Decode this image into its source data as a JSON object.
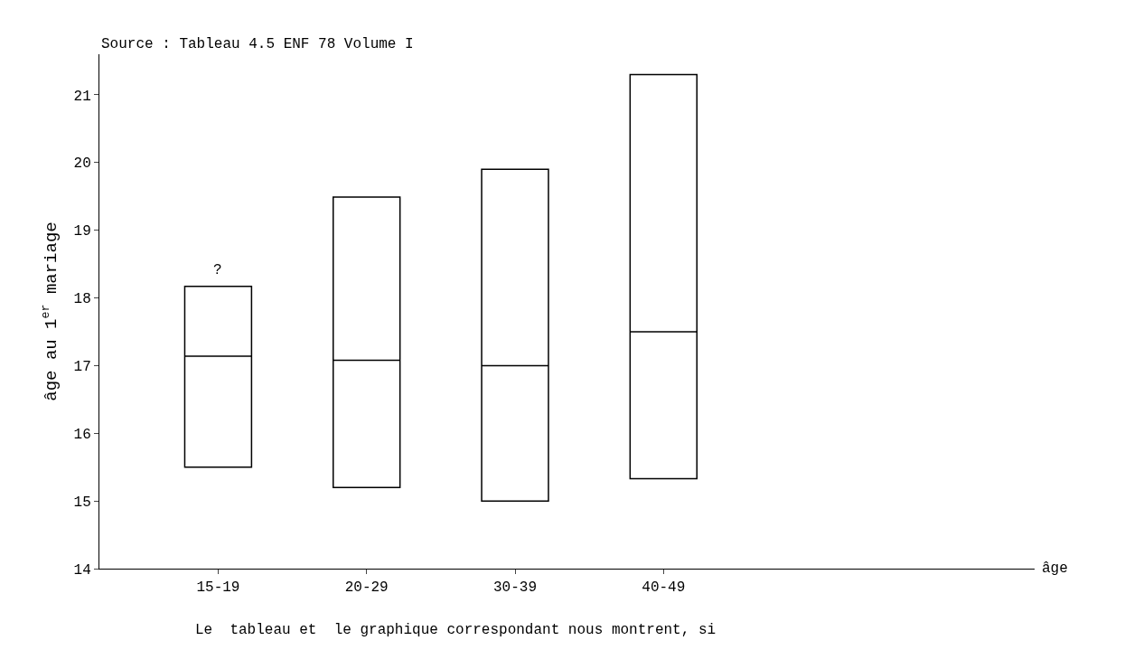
{
  "chart_data": {
    "type": "box",
    "ylabel": "âge au 1$^{er}$ mariage",
    "categories": [
      "15-19",
      "20-29",
      "30-39",
      "40-49"
    ],
    "boxes": [
      {
        "low": 15.5,
        "q1": 15.5,
        "median": 17.14,
        "q3": 18.17,
        "high": 18.17
      },
      {
        "low": 15.2,
        "q1": 15.2,
        "median": 17.08,
        "q3": 19.49,
        "high": 19.49
      },
      {
        "low": 15.0,
        "q1": 15.0,
        "median": 17.0,
        "q3": 19.9,
        "high": 19.9
      },
      {
        "low": 15.33,
        "q1": 15.33,
        "median": 17.5,
        "q3": 21.3,
        "high": 21.3
      }
    ],
    "color": "#000000",
    "ylim": [
      14,
      21.6
    ],
    "yticks": [
      14,
      15,
      16,
      17,
      18,
      19,
      20,
      21
    ],
    "grid": false,
    "annotations": [
      "Source : Tableau 4.5 ENF 78 Volume I",
      "?",
      "âge",
      "Le  tableau et  le graphique correspondant nous montrent, si"
    ]
  }
}
